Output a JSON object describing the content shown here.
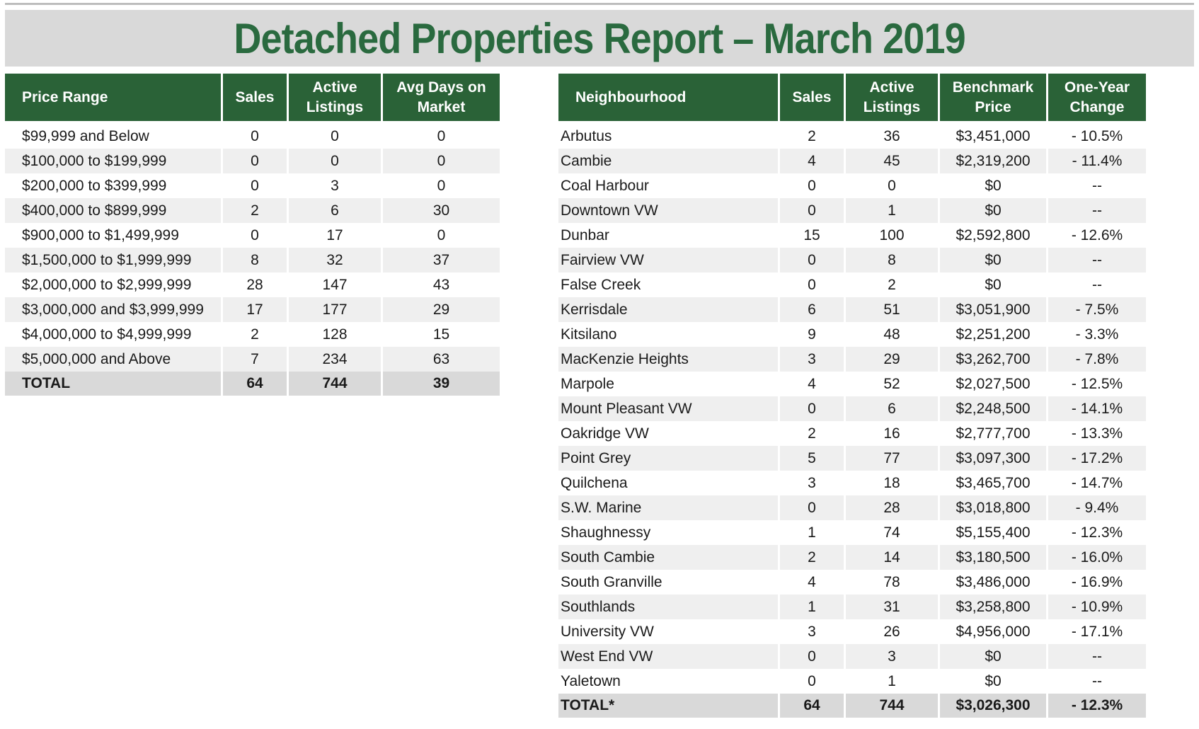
{
  "title": "Detached Properties Report – March 2019",
  "price_table": {
    "headers": [
      "Price Range",
      "Sales",
      "Active Listings",
      "Avg Days on Market"
    ],
    "rows": [
      [
        "$99,999 and Below",
        "0",
        "0",
        "0"
      ],
      [
        "$100,000 to $199,999",
        "0",
        "0",
        "0"
      ],
      [
        "$200,000 to $399,999",
        "0",
        "3",
        "0"
      ],
      [
        "$400,000 to $899,999",
        "2",
        "6",
        "30"
      ],
      [
        "$900,000 to $1,499,999",
        "0",
        "17",
        "0"
      ],
      [
        "$1,500,000 to $1,999,999",
        "8",
        "32",
        "37"
      ],
      [
        "$2,000,000 to $2,999,999",
        "28",
        "147",
        "43"
      ],
      [
        "$3,000,000 and $3,999,999",
        "17",
        "177",
        "29"
      ],
      [
        "$4,000,000 to $4,999,999",
        "2",
        "128",
        "15"
      ],
      [
        "$5,000,000 and Above",
        "7",
        "234",
        "63"
      ]
    ],
    "total": [
      "TOTAL",
      "64",
      "744",
      "39"
    ]
  },
  "neighbourhood_table": {
    "headers": [
      "Neighbourhood",
      "Sales",
      "Active Listings",
      "Benchmark Price",
      "One-Year Change"
    ],
    "rows": [
      [
        "Arbutus",
        "2",
        "36",
        "$3,451,000",
        "- 10.5%"
      ],
      [
        "Cambie",
        "4",
        "45",
        "$2,319,200",
        "- 11.4%"
      ],
      [
        "Coal Harbour",
        "0",
        "0",
        "$0",
        "--"
      ],
      [
        "Downtown VW",
        "0",
        "1",
        "$0",
        "--"
      ],
      [
        "Dunbar",
        "15",
        "100",
        "$2,592,800",
        "- 12.6%"
      ],
      [
        "Fairview VW",
        "0",
        "8",
        "$0",
        "--"
      ],
      [
        "False Creek",
        "0",
        "2",
        "$0",
        "--"
      ],
      [
        "Kerrisdale",
        "6",
        "51",
        "$3,051,900",
        "- 7.5%"
      ],
      [
        "Kitsilano",
        "9",
        "48",
        "$2,251,200",
        "- 3.3%"
      ],
      [
        "MacKenzie Heights",
        "3",
        "29",
        "$3,262,700",
        "- 7.8%"
      ],
      [
        "Marpole",
        "4",
        "52",
        "$2,027,500",
        "- 12.5%"
      ],
      [
        "Mount Pleasant VW",
        "0",
        "6",
        "$2,248,500",
        "- 14.1%"
      ],
      [
        "Oakridge VW",
        "2",
        "16",
        "$2,777,700",
        "- 13.3%"
      ],
      [
        "Point Grey",
        "5",
        "77",
        "$3,097,300",
        "- 17.2%"
      ],
      [
        "Quilchena",
        "3",
        "18",
        "$3,465,700",
        "- 14.7%"
      ],
      [
        "S.W. Marine",
        "0",
        "28",
        "$3,018,800",
        "- 9.4%"
      ],
      [
        "Shaughnessy",
        "1",
        "74",
        "$5,155,400",
        "- 12.3%"
      ],
      [
        "South Cambie",
        "2",
        "14",
        "$3,180,500",
        "- 16.0%"
      ],
      [
        "South Granville",
        "4",
        "78",
        "$3,486,000",
        "- 16.9%"
      ],
      [
        "Southlands",
        "1",
        "31",
        "$3,258,800",
        "- 10.9%"
      ],
      [
        "University VW",
        "3",
        "26",
        "$4,956,000",
        "- 17.1%"
      ],
      [
        "West End VW",
        "0",
        "3",
        "$0",
        "--"
      ],
      [
        "Yaletown",
        "0",
        "1",
        "$0",
        "--"
      ]
    ],
    "total": [
      "TOTAL*",
      "64",
      "744",
      "$3,026,300",
      "- 12.3%"
    ]
  }
}
